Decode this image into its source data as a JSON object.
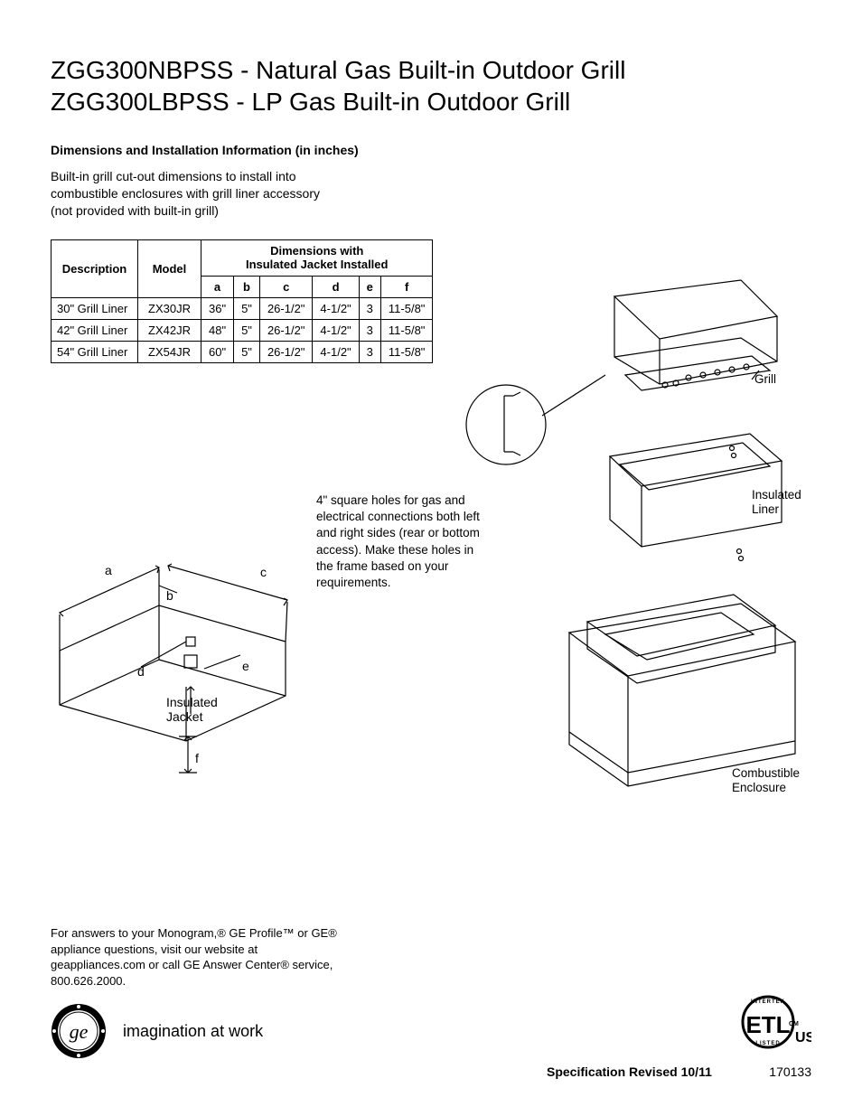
{
  "title": {
    "line1": "ZGG300NBPSS - Natural Gas Built-in Outdoor Grill",
    "line2": "ZGG300LBPSS - LP Gas Built-in Outdoor Grill"
  },
  "subhead": "Dimensions and Installation Information (in inches)",
  "intro": "Built-in grill cut-out dimensions to install into combustible enclosures with grill liner accessory (not provided with built-in grill)",
  "table": {
    "header_group": "Dimensions with\nInsulated Jacket Installed",
    "col_desc": "Description",
    "col_model": "Model",
    "cols": [
      "a",
      "b",
      "c",
      "d",
      "e",
      "f"
    ],
    "rows": [
      {
        "desc": "30\" Grill Liner",
        "model": "ZX30JR",
        "vals": [
          "36\"",
          "5\"",
          "26-1/2\"",
          "4-1/2\"",
          "3",
          "11-5/8\""
        ]
      },
      {
        "desc": "42\" Grill Liner",
        "model": "ZX42JR",
        "vals": [
          "48\"",
          "5\"",
          "26-1/2\"",
          "4-1/2\"",
          "3",
          "11-5/8\""
        ]
      },
      {
        "desc": "54\" Grill Liner",
        "model": "ZX54JR",
        "vals": [
          "60\"",
          "5\"",
          "26-1/2\"",
          "4-1/2\"",
          "3",
          "11-5/8\""
        ]
      }
    ]
  },
  "cutout_diagram": {
    "labels": {
      "a": "a",
      "b": "b",
      "c": "c",
      "d": "d",
      "e": "e",
      "f": "f",
      "jacket": "Insulated\nJacket"
    },
    "line_color": "#000000",
    "line_width": 1.2
  },
  "diag_note": "4\" square holes for gas and electrical connections both left and right sides (rear or bottom access). Make these holes in the frame based on your requirements.",
  "exploded": {
    "labels": {
      "grill": "Grill",
      "liner": "Insulated\nLiner",
      "enclosure": "Combustible\nEnclosure"
    },
    "line_color": "#000000",
    "line_width": 1.2
  },
  "footer_text": "For answers to your Monogram,® GE Profile™ or GE® appliance questions, visit our website at geappliances.com or call GE Answer Center® service, 800.626.2000.",
  "ge_tagline": "imagination at work",
  "etl": {
    "top": "INTERTEK",
    "mid": "ETL",
    "side": "CM",
    "bottom": "LISTED",
    "suffix": "US"
  },
  "spec_rev": "Specification Revised 10/11",
  "doc_number": "170133",
  "colors": {
    "text": "#000000",
    "background": "#ffffff"
  }
}
